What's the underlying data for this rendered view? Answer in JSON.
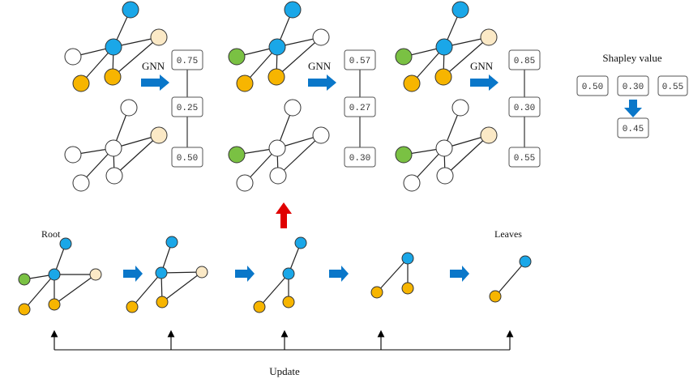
{
  "labels": {
    "gnn": "GNN",
    "shapley": "Shapley value",
    "root": "Root",
    "leaves": "Leaves",
    "update": "Update"
  },
  "colors": {
    "blue": "#1aa7e8",
    "orange": "#f7b500",
    "green": "#7ac143",
    "cream": "#fbe9c6",
    "white": "#ffffff",
    "arrow_blue": "#0a77c9",
    "arrow_red": "#e00000"
  },
  "top_values": [
    [
      "0.75",
      "0.25",
      "0.50"
    ],
    [
      "0.57",
      "0.27",
      "0.30"
    ],
    [
      "0.85",
      "0.30",
      "0.55"
    ]
  ],
  "shapley_values": [
    "0.50",
    "0.30",
    "0.55"
  ],
  "shapley_result": "0.45"
}
